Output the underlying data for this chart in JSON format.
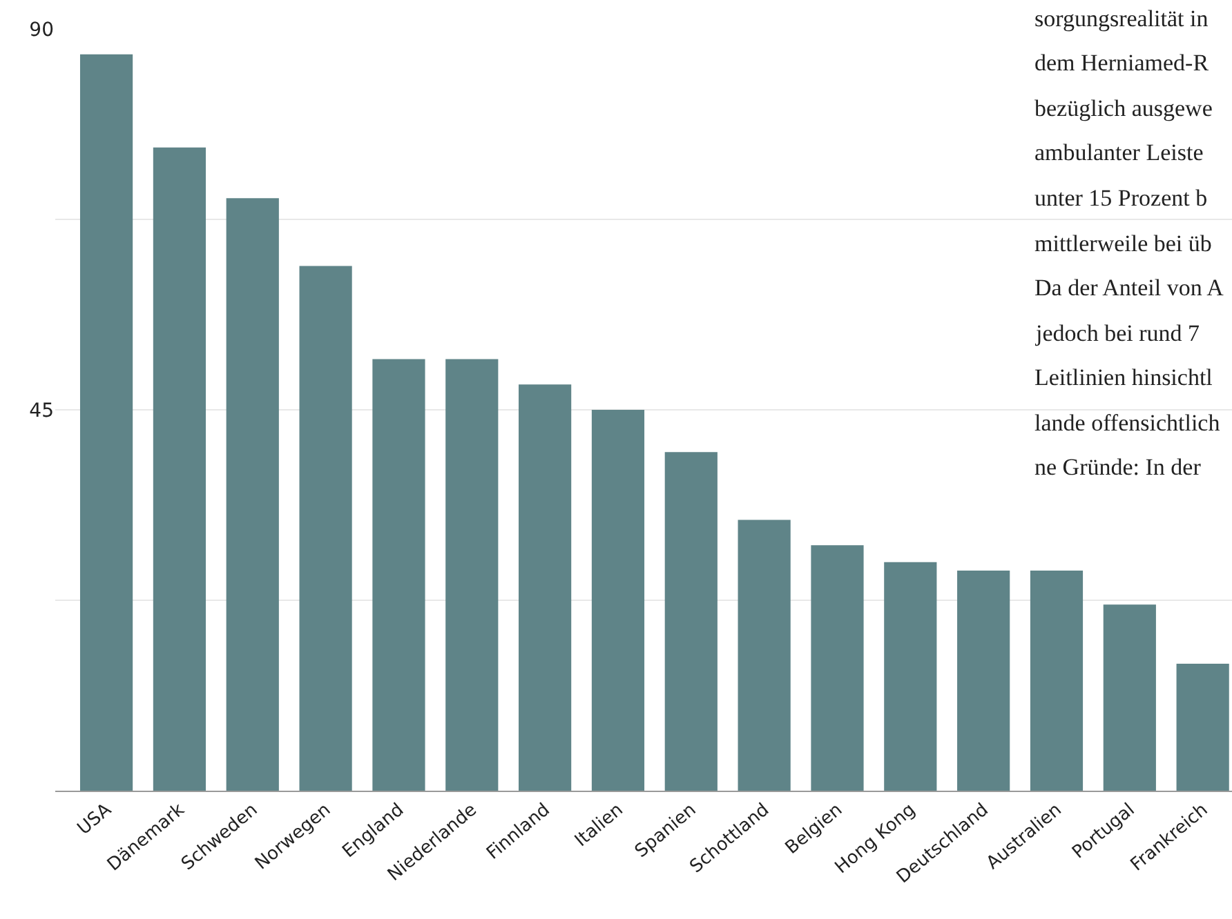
{
  "chart_data": {
    "type": "bar",
    "categories": [
      "USA",
      "Dänemark",
      "Schweden",
      "Norwegen",
      "England",
      "Niederlande",
      "Finnland",
      "Italien",
      "Spanien",
      "Schottland",
      "Belgien",
      "Hong Kong",
      "Deutschland",
      "Australien",
      "Portugal",
      "Frankreich"
    ],
    "values": [
      87,
      76,
      70,
      62,
      51,
      51,
      48,
      45,
      40,
      32,
      29,
      27,
      26,
      26,
      22,
      15
    ],
    "color": "#5f8488",
    "ylim": [
      0,
      90
    ],
    "yticks": [
      {
        "value": 22.5,
        "label": null
      },
      45,
      {
        "value": 67.5,
        "label": null
      },
      90
    ],
    "grid": "y",
    "annotations": [
      "sorgungsrealität in",
      "dem Herniamed-R",
      "bezüglich ausgewe",
      "ambulanter Leiste",
      "unter 15 Prozent b",
      "mittlerweile bei üb",
      "Da der Anteil von A",
      "jedoch bei rund 7",
      "Leitlinien hinsichtl",
      "lande offensichtlich",
      "ne Gründe: In der"
    ]
  }
}
